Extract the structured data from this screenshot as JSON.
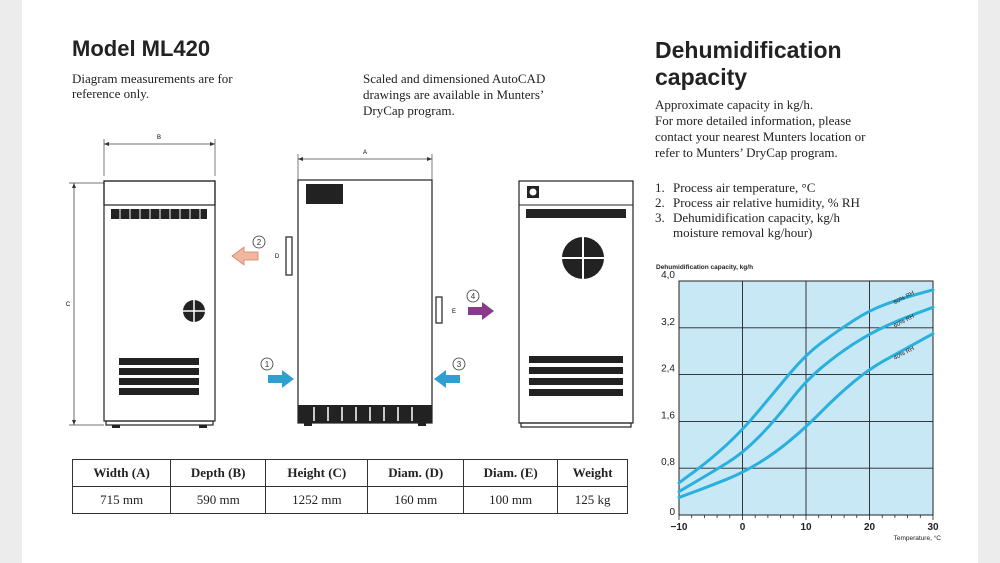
{
  "left": {
    "title": "Model ML420",
    "note_left": [
      "Diagram measurements are for",
      "reference only."
    ],
    "note_right": [
      "Scaled and dimensioned AutoCAD",
      "drawings are available in Munters’",
      "DryCap program."
    ]
  },
  "diagram": {
    "dim_b": "B",
    "dim_a": "A",
    "dim_c": "C",
    "dim_d": "D",
    "dim_e": "E",
    "callouts": [
      "1",
      "2",
      "3",
      "4"
    ]
  },
  "specs": {
    "headers": [
      "Width (A)",
      "Depth (B)",
      "Height (C)",
      "Diam. (D)",
      "Diam. (E)",
      "Weight"
    ],
    "values": [
      "715 mm",
      "590 mm",
      "1252 mm",
      "160 mm",
      "100 mm",
      "125 kg"
    ]
  },
  "right": {
    "title_line1": "Dehumidification",
    "title_line2": "capacity",
    "intro": [
      "Approximate capacity in kg/h.",
      "For more detailed information, please",
      "contact your nearest Munters location or",
      "refer to Munters’ DryCap program."
    ],
    "list": [
      {
        "num": "1.",
        "text": "Process air temperature, °C"
      },
      {
        "num": "2.",
        "text": "Process air relative humidity, % RH"
      },
      {
        "num": "3.",
        "text": "Dehumidification capacity, kg/h"
      },
      {
        "num": "",
        "text": "moisture removal kg/hour)"
      }
    ]
  },
  "chart_data": {
    "type": "line",
    "title": "Dehumidification capacity, kg/h",
    "xlabel": "Temperature, °C",
    "xlim": [
      -10,
      30
    ],
    "ylim": [
      0,
      4.0
    ],
    "x_ticks": [
      "−10",
      "0",
      "10",
      "20",
      "30"
    ],
    "y_ticks": [
      "0",
      "0,8",
      "1,6",
      "2,4",
      "3,2",
      "4,0"
    ],
    "grid": true,
    "line_color": "#29b0de",
    "fill_color": "#c8e8f6",
    "series": [
      {
        "name": "80% RH",
        "x": [
          -10,
          -5,
          0,
          5,
          10,
          15,
          20,
          25,
          30
        ],
        "y": [
          0.55,
          0.95,
          1.45,
          2.1,
          2.75,
          3.15,
          3.5,
          3.7,
          3.85
        ]
      },
      {
        "name": "60% RH",
        "x": [
          -10,
          -5,
          0,
          5,
          10,
          15,
          20,
          25,
          30
        ],
        "y": [
          0.4,
          0.72,
          1.05,
          1.6,
          2.3,
          2.75,
          3.1,
          3.35,
          3.55
        ]
      },
      {
        "name": "40% RH",
        "x": [
          -10,
          -5,
          0,
          5,
          10,
          15,
          20,
          25,
          30
        ],
        "y": [
          0.3,
          0.5,
          0.72,
          1.05,
          1.5,
          2.05,
          2.5,
          2.8,
          3.1
        ]
      }
    ]
  }
}
